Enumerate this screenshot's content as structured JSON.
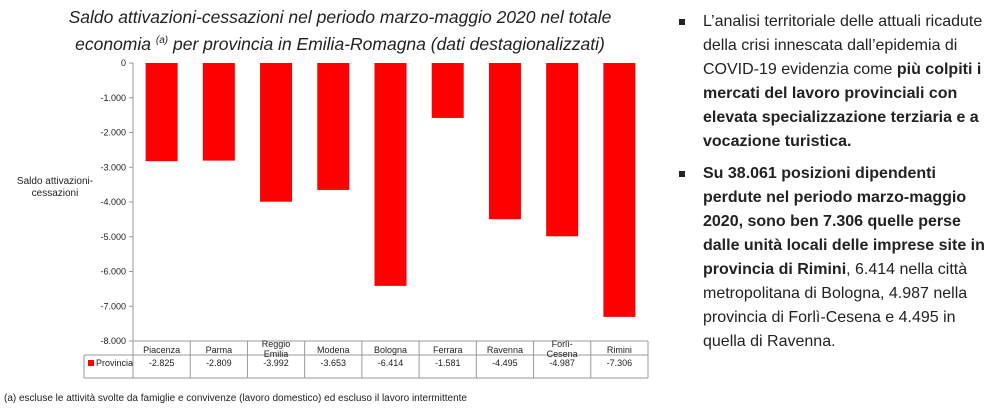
{
  "title_line1": "Saldo attivazioni-cessazioni nel periodo marzo-maggio 2020 nel totale",
  "title_line2_pre": "economia",
  "title_sup": "(a)",
  "title_line2_post": "per provincia in Emilia-Romagna (dati destagionalizzati)",
  "footnote": "(a) escluse le attività svolte da famiglie e convivenze (lavoro domestico) ed escluso il lavoro intermittente",
  "bullets": [
    {
      "parts": [
        {
          "text": "L’analisi territoriale delle attuali ricadute della crisi innescata dall’epidemia di COVID-19 evidenzia come ",
          "bold": false
        },
        {
          "text": "più colpiti i mercati del lavoro provinciali con elevata specializzazione terziaria e a vocazione turistica.",
          "bold": true
        }
      ]
    },
    {
      "parts": [
        {
          "text": "Su 38.061 posizioni dipendenti perdute nel periodo marzo-maggio 2020, sono ben 7.306 quelle perse dalle unità locali delle imprese site in provincia di Rimini",
          "bold": true
        },
        {
          "text": ", 6.414 nella città metropolitana di Bologna, 4.987 nella provincia di Forlì-Cesena e 4.495 in quella di Ravenna.",
          "bold": false
        }
      ]
    }
  ],
  "chart_data": {
    "type": "bar",
    "ylabel": "Saldo attivazioni-cessazioni",
    "categories": [
      "Piacenza",
      "Parma",
      "Reggio Emilia",
      "Modena",
      "Bologna",
      "Ferrara",
      "Ravenna",
      "Forlì-Cesena",
      "Rimini"
    ],
    "category_lines": [
      [
        "Piacenza"
      ],
      [
        "Parma"
      ],
      [
        "Reggio",
        "Emilia"
      ],
      [
        "Modena"
      ],
      [
        "Bologna"
      ],
      [
        "Ferrara"
      ],
      [
        "Ravenna"
      ],
      [
        "Forlì-",
        "Cesena"
      ],
      [
        "Rimini"
      ]
    ],
    "series": [
      {
        "name": "Provincia",
        "color": "#ff0000",
        "values": [
          -2825,
          -2809,
          -3992,
          -3653,
          -6414,
          -1581,
          -4495,
          -4987,
          -7306
        ],
        "labels": [
          "-2.825",
          "-2.809",
          "-3.992",
          "-3.653",
          "-6.414",
          "-1.581",
          "-4.495",
          "-4.987",
          "-7.306"
        ]
      }
    ],
    "ylim": [
      -8000,
      0
    ],
    "yticks": [
      0,
      -1000,
      -2000,
      -3000,
      -4000,
      -5000,
      -6000,
      -7000,
      -8000
    ],
    "ytick_labels": [
      "0",
      "-1.000",
      "-2.000",
      "-3.000",
      "-4.000",
      "-5.000",
      "-6.000",
      "-7.000",
      "-8.000"
    ],
    "grid": false,
    "data_table": true
  }
}
